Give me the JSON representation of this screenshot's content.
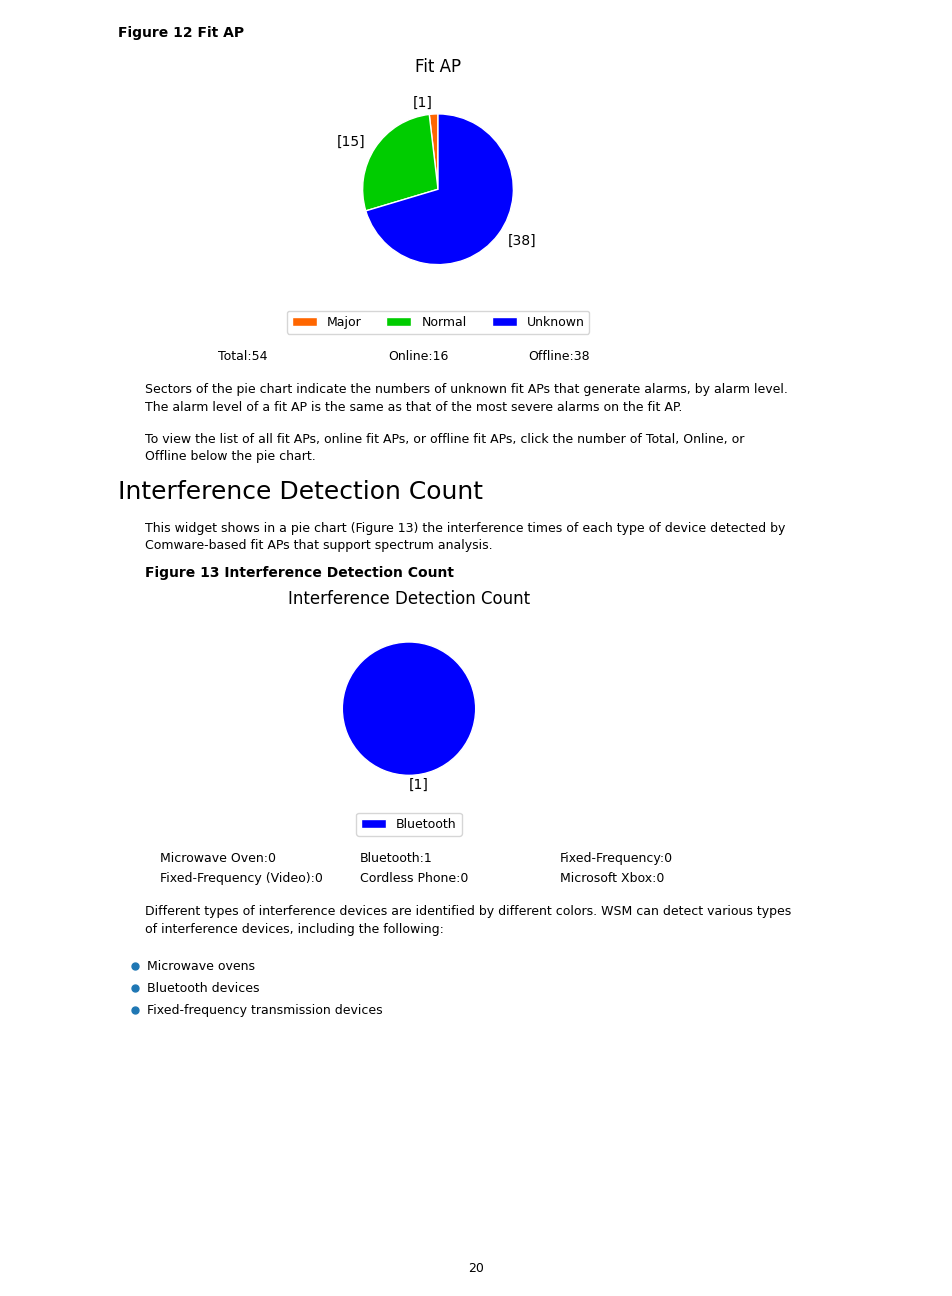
{
  "chart_data": [
    {
      "type": "pie",
      "title": "Fit AP",
      "subtitle": "Figure 12 Fit AP",
      "categories": [
        "Major",
        "Normal",
        "Unknown"
      ],
      "values": [
        1,
        15,
        38
      ],
      "value_labels": [
        "[1]",
        "[15]",
        "[38]"
      ],
      "colors": [
        "#ff6600",
        "#00cc00",
        "#0000ff"
      ],
      "legend": "lower center",
      "annotations": [
        "Total:54",
        "Online:16",
        "Offline:38",
        "Sectors of the pie chart indicate the numbers of unknown fit APs that generate alarms, by alarm level.\nThe alarm level of a fit AP is the same as that of the most severe alarms on the fit AP.",
        "To view the list of all fit APs, online fit APs, or offline fit APs, click the number of Total, Online, or\nOffline below the pie chart.",
        "Interference Detection Count",
        "This widget shows in a pie chart (Figure 13) the interference times of each type of device detected by\nComware-based fit APs that support spectrum analysis."
      ]
    },
    {
      "type": "pie",
      "title": "Interference Detection Count",
      "subtitle": "Figure 13 Interference Detection Count",
      "categories": [
        "Bluetooth"
      ],
      "values": [
        1
      ],
      "value_labels": [
        "[1]"
      ],
      "colors": [
        "#0000ff"
      ],
      "legend": "lower center",
      "annotations": [
        "Microwave Oven:0",
        "Bluetooth:1",
        "Fixed-Frequency:0",
        "Fixed-Frequency (Video):0",
        "Cordless Phone:0",
        "Microsoft Xbox:0",
        "Different types of interference devices are identified by different colors. WSM can detect various types\nof interference devices, including the following:",
        "Microwave ovens",
        "Bluetooth devices",
        "Fixed-frequency transmission devices",
        "20"
      ]
    }
  ]
}
